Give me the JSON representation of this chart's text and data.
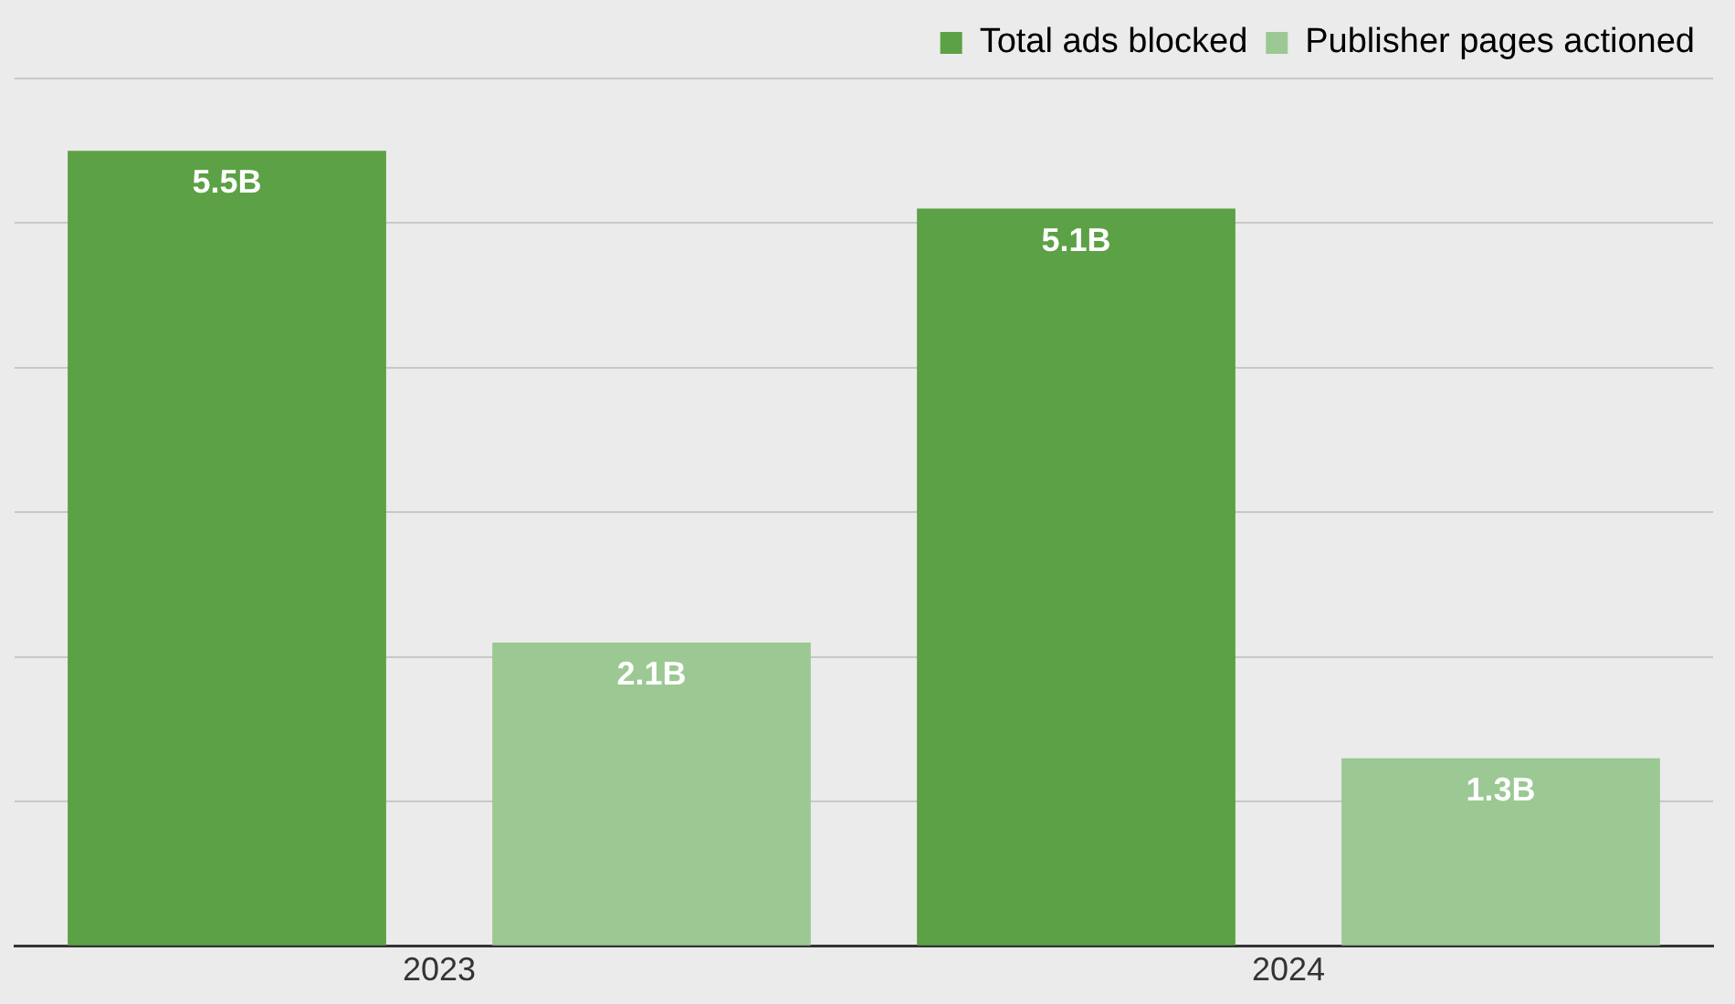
{
  "chart_data": {
    "type": "bar",
    "categories": [
      "2023",
      "2024"
    ],
    "series": [
      {
        "name": "Total ads blocked",
        "color": "#5ca145",
        "values": [
          5.5,
          5.1
        ],
        "value_labels": [
          "5.5B",
          "5.1B"
        ]
      },
      {
        "name": "Publisher pages actioned",
        "color": "#9cc893",
        "values": [
          2.1,
          1.3
        ],
        "value_labels": [
          "2.1B",
          "1.3B"
        ]
      }
    ],
    "ylim": [
      0,
      6
    ],
    "yticks": [
      {
        "value": 0,
        "label": null
      },
      {
        "value": 1,
        "label": null
      },
      {
        "value": 2,
        "label": null
      },
      {
        "value": 3,
        "label": null
      },
      {
        "value": 4,
        "label": null
      },
      {
        "value": 5,
        "label": null
      },
      {
        "value": 6,
        "label": null
      }
    ],
    "grid": "y",
    "legend": "top right",
    "tick_labels": "x"
  }
}
